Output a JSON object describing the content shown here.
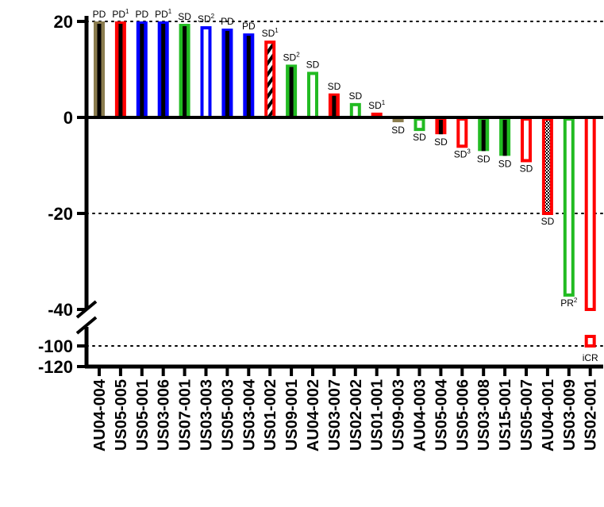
{
  "chart_data": {
    "type": "bar",
    "title": "",
    "xlabel": "",
    "ylabel": "",
    "y_ticks": [
      "20",
      "0",
      "-20",
      "-40",
      "-100",
      "-120"
    ],
    "y_axis": {
      "upper_range": [
        -40,
        20
      ],
      "lower_range": [
        -120,
        -80
      ],
      "broken": true
    },
    "reference_lines": [
      20,
      -20,
      -100
    ],
    "colors": {
      "olive": "#8b7d4f",
      "red": "#ff0000",
      "blue": "#0000ff",
      "green": "#22bb22",
      "black": "#000000"
    },
    "bars": [
      {
        "id": "AU04-004",
        "value": 20,
        "color": "olive",
        "style": "solid",
        "label": "PD",
        "sup": ""
      },
      {
        "id": "US05-005",
        "value": 20,
        "color": "red",
        "style": "solid",
        "label": "PD",
        "sup": "1"
      },
      {
        "id": "US05-001",
        "value": 20,
        "color": "blue",
        "style": "solid",
        "label": "PD",
        "sup": ""
      },
      {
        "id": "US03-006",
        "value": 20,
        "color": "blue",
        "style": "solid",
        "label": "PD",
        "sup": "1"
      },
      {
        "id": "US07-001",
        "value": 19.5,
        "color": "green",
        "style": "solid",
        "label": "SD",
        "sup": ""
      },
      {
        "id": "US03-003",
        "value": 19,
        "color": "blue",
        "style": "outline",
        "label": "SD",
        "sup": "2"
      },
      {
        "id": "US05-003",
        "value": 18.5,
        "color": "blue",
        "style": "solid",
        "label": "PD",
        "sup": ""
      },
      {
        "id": "US03-004",
        "value": 17.5,
        "color": "blue",
        "style": "solid",
        "label": "PD",
        "sup": ""
      },
      {
        "id": "US01-002",
        "value": 16,
        "color": "red",
        "style": "hatched",
        "label": "SD",
        "sup": "1"
      },
      {
        "id": "US09-001",
        "value": 11,
        "color": "green",
        "style": "solid",
        "label": "SD",
        "sup": "2"
      },
      {
        "id": "AU04-002",
        "value": 9.5,
        "color": "green",
        "style": "outline",
        "label": "SD",
        "sup": ""
      },
      {
        "id": "US03-007",
        "value": 5,
        "color": "red",
        "style": "solid",
        "label": "SD",
        "sup": ""
      },
      {
        "id": "US02-002",
        "value": 3,
        "color": "green",
        "style": "outline",
        "label": "SD",
        "sup": ""
      },
      {
        "id": "US01-001",
        "value": 1,
        "color": "red",
        "style": "solid",
        "label": "SD",
        "sup": "1"
      },
      {
        "id": "US09-003",
        "value": -1,
        "color": "olive",
        "style": "solid",
        "label": "SD",
        "sup": ""
      },
      {
        "id": "AU04-003",
        "value": -2.5,
        "color": "green",
        "style": "outline",
        "label": "SD",
        "sup": ""
      },
      {
        "id": "US05-004",
        "value": -3.5,
        "color": "red",
        "style": "solid",
        "label": "SD",
        "sup": ""
      },
      {
        "id": "US05-006",
        "value": -6,
        "color": "red",
        "style": "outline",
        "label": "SD",
        "sup": "3"
      },
      {
        "id": "US03-008",
        "value": -7,
        "color": "green",
        "style": "solid",
        "label": "SD",
        "sup": ""
      },
      {
        "id": "US15-001",
        "value": -8,
        "color": "green",
        "style": "solid",
        "label": "SD",
        "sup": ""
      },
      {
        "id": "US05-007",
        "value": -9,
        "color": "red",
        "style": "outline",
        "label": "SD",
        "sup": ""
      },
      {
        "id": "AU04-001",
        "value": -20,
        "color": "red",
        "style": "checker",
        "label": "SD",
        "sup": ""
      },
      {
        "id": "US03-009",
        "value": -37,
        "color": "green",
        "style": "outline",
        "label": "PR",
        "sup": "2"
      },
      {
        "id": "US02-001",
        "value": -100,
        "color": "red",
        "style": "outline",
        "label": "iCR",
        "sup": ""
      }
    ]
  }
}
